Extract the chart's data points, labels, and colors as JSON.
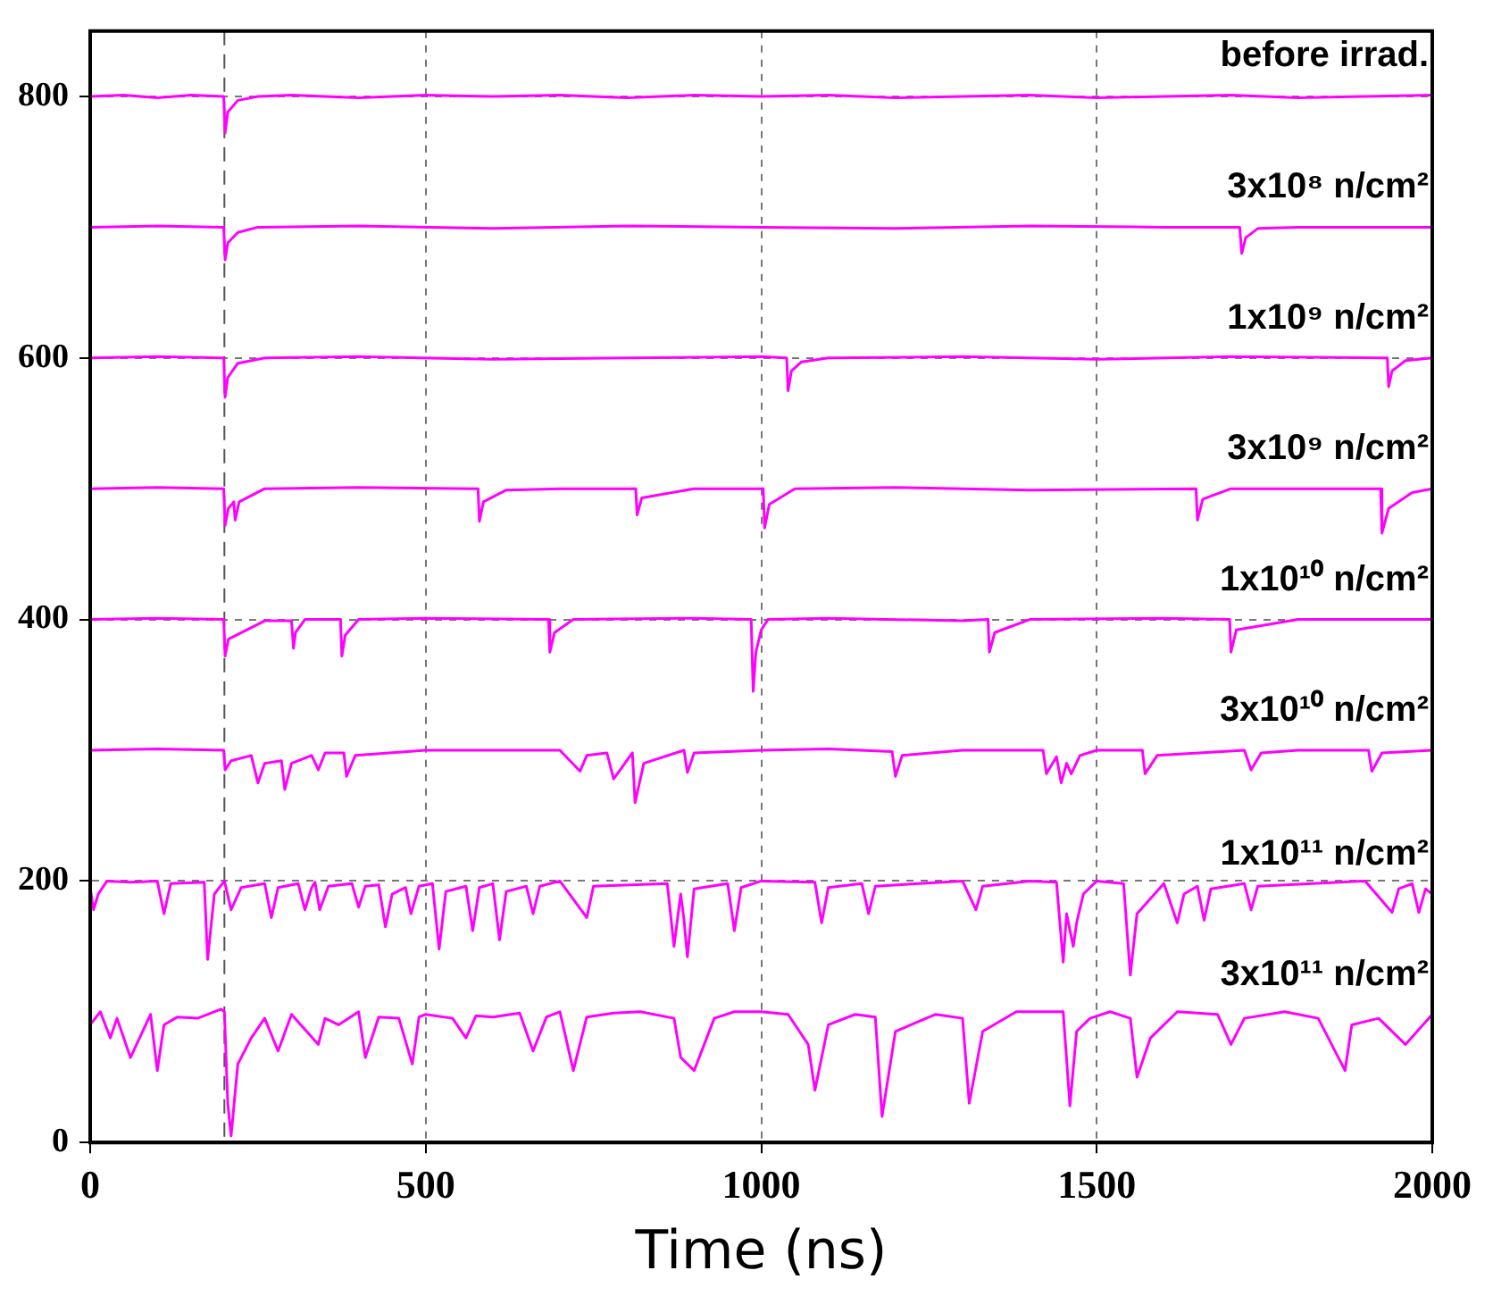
{
  "chart_data": {
    "type": "line",
    "xlabel": "Time (ns)",
    "xlim": [
      0,
      2000
    ],
    "xticks": [
      0,
      500,
      1000,
      1500,
      2000
    ],
    "ylim": [
      0,
      850
    ],
    "yticks": [
      0,
      200,
      400,
      600,
      800
    ],
    "grid": true,
    "legend": false,
    "marker": "none",
    "line_style": "solid",
    "ref_lines": [
      {
        "axis": "x",
        "value": 200
      }
    ],
    "series": [
      {
        "name": "before irrad.",
        "color": "#ff00ff",
        "x": [
          0,
          50,
          100,
          150,
          199,
          201,
          205,
          220,
          250,
          300,
          400,
          500,
          600,
          700,
          800,
          900,
          1000,
          1100,
          1200,
          1300,
          1400,
          1500,
          1600,
          1700,
          1800,
          1900,
          2000
        ],
        "values": [
          800,
          801,
          799,
          801,
          800,
          772,
          788,
          797,
          800,
          801,
          799,
          801,
          800,
          801,
          799,
          801,
          800,
          801,
          799,
          800,
          801,
          799,
          800,
          801,
          799,
          800,
          801
        ]
      },
      {
        "name": "3x10⁸ n/cm²",
        "color": "#ff00ff",
        "x": [
          0,
          100,
          199,
          201,
          205,
          220,
          250,
          400,
          600,
          800,
          1000,
          1200,
          1400,
          1600,
          1713,
          1716,
          1722,
          1740,
          1800,
          2000
        ],
        "values": [
          700,
          701,
          700,
          675,
          688,
          696,
          700,
          701,
          699,
          701,
          700,
          699,
          701,
          700,
          700,
          680,
          692,
          699,
          700,
          700
        ]
      },
      {
        "name": "1x10⁹ n/cm²",
        "color": "#ff00ff",
        "x": [
          0,
          100,
          199,
          201,
          205,
          220,
          260,
          400,
          600,
          800,
          1000,
          1038,
          1040,
          1045,
          1060,
          1100,
          1300,
          1500,
          1700,
          1933,
          1935,
          1940,
          1960,
          2000
        ],
        "values": [
          600,
          601,
          600,
          570,
          585,
          596,
          600,
          601,
          599,
          600,
          601,
          600,
          575,
          590,
          597,
          600,
          601,
          599,
          601,
          600,
          578,
          590,
          598,
          600
        ]
      },
      {
        "name": "3x10⁹ n/cm²",
        "color": "#ff00ff",
        "x": [
          0,
          100,
          199,
          201,
          206,
          214,
          216,
          222,
          260,
          400,
          578,
          580,
          586,
          620,
          700,
          813,
          815,
          822,
          900,
          1003,
          1005,
          1012,
          1050,
          1200,
          1400,
          1648,
          1650,
          1658,
          1700,
          1923,
          1925,
          1935,
          1970,
          2000
        ],
        "values": [
          500,
          501,
          500,
          472,
          485,
          490,
          476,
          490,
          500,
          501,
          500,
          475,
          490,
          499,
          500,
          500,
          480,
          493,
          500,
          500,
          470,
          488,
          500,
          501,
          499,
          500,
          476,
          492,
          500,
          500,
          466,
          485,
          497,
          500
        ]
      },
      {
        "name": "1x10¹⁰ n/cm²",
        "color": "#ff00ff",
        "x": [
          0,
          100,
          199,
          201,
          206,
          260,
          300,
          303,
          306,
          320,
          350,
          373,
          375,
          380,
          400,
          500,
          683,
          685,
          692,
          720,
          900,
          985,
          988,
          992,
          1000,
          1010,
          1100,
          1300,
          1338,
          1340,
          1348,
          1400,
          1600,
          1698,
          1700,
          1708,
          1800,
          2000
        ],
        "values": [
          400,
          401,
          400,
          372,
          385,
          399,
          399,
          378,
          390,
          400,
          400,
          400,
          372,
          388,
          400,
          401,
          400,
          375,
          390,
          400,
          401,
          400,
          345,
          375,
          392,
          400,
          401,
          399,
          400,
          375,
          390,
          400,
          401,
          400,
          375,
          392,
          400,
          400
        ]
      },
      {
        "name": "3x10¹⁰ n/cm²",
        "color": "#ff00ff",
        "x": [
          0,
          100,
          199,
          201,
          210,
          240,
          250,
          260,
          285,
          290,
          300,
          330,
          340,
          350,
          378,
          382,
          395,
          500,
          700,
          730,
          740,
          770,
          780,
          808,
          812,
          825,
          885,
          890,
          900,
          1000,
          1100,
          1195,
          1200,
          1210,
          1300,
          1420,
          1425,
          1440,
          1447,
          1455,
          1462,
          1475,
          1500,
          1568,
          1572,
          1590,
          1720,
          1730,
          1745,
          1800,
          1905,
          1910,
          1925,
          2000
        ],
        "values": [
          300,
          301,
          300,
          285,
          292,
          296,
          275,
          290,
          292,
          270,
          290,
          296,
          285,
          298,
          298,
          280,
          296,
          300,
          300,
          284,
          296,
          298,
          278,
          298,
          260,
          290,
          300,
          283,
          298,
          300,
          301,
          299,
          280,
          296,
          300,
          300,
          282,
          295,
          275,
          290,
          282,
          296,
          300,
          300,
          282,
          296,
          300,
          285,
          298,
          300,
          300,
          284,
          298,
          300
        ]
      },
      {
        "name": "1x10¹¹ n/cm²",
        "color": "#ff00ff",
        "x": [
          0,
          5,
          12,
          25,
          60,
          100,
          110,
          120,
          170,
          175,
          185,
          200,
          210,
          225,
          260,
          270,
          280,
          310,
          320,
          330,
          335,
          342,
          355,
          390,
          400,
          410,
          430,
          440,
          450,
          470,
          478,
          490,
          510,
          520,
          530,
          560,
          570,
          580,
          600,
          610,
          620,
          650,
          660,
          670,
          700,
          740,
          750,
          860,
          870,
          880,
          885,
          890,
          900,
          950,
          960,
          970,
          1000,
          1080,
          1090,
          1100,
          1150,
          1160,
          1170,
          1300,
          1320,
          1330,
          1400,
          1440,
          1450,
          1455,
          1465,
          1470,
          1480,
          1500,
          1540,
          1550,
          1560,
          1600,
          1620,
          1630,
          1650,
          1660,
          1670,
          1720,
          1730,
          1740,
          1900,
          1940,
          1950,
          1970,
          1980,
          1990,
          2000
        ],
        "values": [
          195,
          178,
          190,
          200,
          199,
          200,
          175,
          198,
          199,
          140,
          190,
          200,
          178,
          195,
          198,
          172,
          195,
          198,
          178,
          195,
          199,
          178,
          196,
          198,
          180,
          196,
          197,
          165,
          190,
          195,
          175,
          196,
          198,
          148,
          192,
          196,
          162,
          195,
          198,
          155,
          192,
          196,
          175,
          196,
          200,
          172,
          196,
          198,
          150,
          190,
          170,
          142,
          194,
          198,
          162,
          195,
          200,
          199,
          168,
          195,
          198,
          175,
          196,
          200,
          178,
          196,
          200,
          199,
          138,
          175,
          150,
          168,
          190,
          200,
          198,
          128,
          175,
          198,
          168,
          190,
          196,
          170,
          194,
          198,
          178,
          196,
          200,
          176,
          194,
          198,
          176,
          194,
          190
        ]
      },
      {
        "name": "3x10¹¹ n/cm²",
        "color": "#ff00ff",
        "x": [
          0,
          15,
          30,
          40,
          60,
          90,
          100,
          110,
          130,
          160,
          195,
          200,
          205,
          210,
          220,
          240,
          260,
          280,
          300,
          340,
          350,
          370,
          400,
          410,
          430,
          460,
          480,
          490,
          500,
          540,
          560,
          575,
          600,
          640,
          660,
          680,
          700,
          720,
          740,
          780,
          820,
          870,
          880,
          900,
          930,
          960,
          1000,
          1040,
          1070,
          1080,
          1100,
          1140,
          1170,
          1180,
          1200,
          1260,
          1300,
          1310,
          1330,
          1380,
          1450,
          1460,
          1470,
          1490,
          1520,
          1550,
          1560,
          1580,
          1620,
          1680,
          1700,
          1720,
          1780,
          1830,
          1870,
          1880,
          1920,
          1960,
          2000
        ],
        "values": [
          90,
          100,
          80,
          95,
          65,
          98,
          55,
          90,
          96,
          95,
          102,
          100,
          30,
          5,
          60,
          80,
          95,
          70,
          98,
          75,
          95,
          90,
          100,
          65,
          96,
          95,
          60,
          96,
          98,
          95,
          80,
          97,
          96,
          99,
          70,
          96,
          100,
          55,
          96,
          99,
          100,
          95,
          65,
          55,
          95,
          100,
          100,
          98,
          75,
          40,
          90,
          98,
          96,
          20,
          85,
          98,
          95,
          30,
          85,
          100,
          100,
          28,
          85,
          95,
          100,
          95,
          50,
          80,
          100,
          98,
          75,
          95,
          100,
          95,
          55,
          90,
          95,
          75,
          98
        ]
      }
    ]
  }
}
